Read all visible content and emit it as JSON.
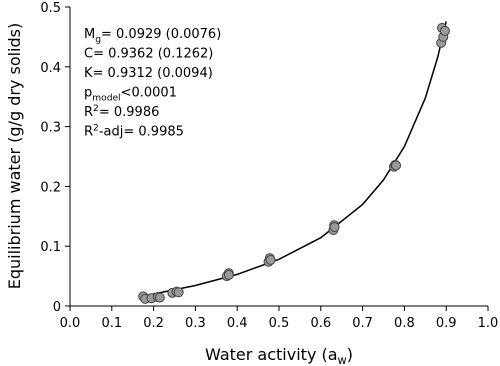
{
  "chart_data": {
    "type": "scatter",
    "x_label": {
      "text": "Water activity (a",
      "sub": "w",
      "rest": ")"
    },
    "y_label": "Equilibrium water (g/g dry solids)",
    "xlim": [
      0,
      1
    ],
    "ylim": [
      0,
      0.5
    ],
    "xticks": [
      {
        "value": 0,
        "label": "0.0"
      },
      0.1,
      0.2,
      0.3,
      0.4,
      0.5,
      0.6,
      0.7,
      0.8,
      0.9,
      {
        "value": 1,
        "label": "1.0"
      }
    ],
    "yticks": [
      0,
      0.1,
      0.2,
      0.3,
      0.4,
      0.5
    ],
    "series": [
      {
        "color": "#9a9a9a",
        "x": [
          0.175,
          0.18,
          0.195,
          0.21,
          0.215,
          0.245,
          0.255,
          0.26,
          0.375,
          0.38,
          0.38,
          0.475,
          0.478,
          0.48,
          0.63,
          0.632,
          0.633,
          0.775,
          0.778,
          0.78,
          0.888,
          0.89,
          0.893,
          0.897
        ],
        "values": [
          0.016,
          0.012,
          0.013,
          0.015,
          0.014,
          0.022,
          0.024,
          0.023,
          0.05,
          0.055,
          0.052,
          0.074,
          0.08,
          0.077,
          0.127,
          0.135,
          0.132,
          0.233,
          0.236,
          0.235,
          0.44,
          0.465,
          0.45,
          0.46
        ]
      }
    ],
    "fit": {
      "color": "#000000",
      "x": [
        0.17,
        0.2,
        0.3,
        0.4,
        0.5,
        0.6,
        0.7,
        0.75,
        0.8,
        0.85,
        0.88,
        0.9
      ],
      "values": [
        0.0165,
        0.0201,
        0.0343,
        0.0529,
        0.0781,
        0.1142,
        0.1699,
        0.2108,
        0.2668,
        0.3477,
        0.4166,
        0.4757
      ]
    },
    "annotations": [
      {
        "text": "M",
        "sub": "g",
        "rest": "= 0.0929 (0.0076)"
      },
      {
        "text": "C= 0.9362 (0.1262)"
      },
      {
        "text": "K= 0.9312 (0.0094)"
      },
      {
        "text": "p",
        "sub": "model",
        "rest": "<0.0001"
      },
      {
        "text": "R",
        "sup": "2",
        "rest": "= 0.9986"
      },
      {
        "text": "R",
        "sup": "2",
        "rest": "-adj= 0.9985"
      }
    ]
  }
}
